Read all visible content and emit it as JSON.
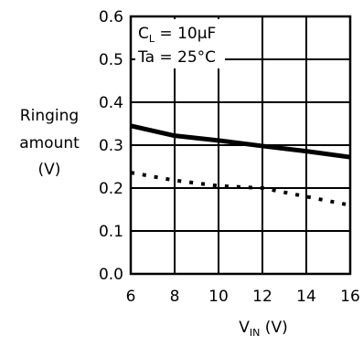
{
  "chart_data": {
    "type": "line",
    "title": "",
    "xlabel": "V",
    "xlabel_sub": "IN",
    "xlabel_unit": " (V)",
    "ylabel_lines": [
      "Ringing",
      "amount",
      "(V)"
    ],
    "xlim": [
      6,
      16
    ],
    "ylim": [
      0.0,
      0.6
    ],
    "x_ticks": [
      "6",
      "8",
      "10",
      "12",
      "14",
      "16"
    ],
    "y_ticks": [
      "0.0",
      "0.1",
      "0.2",
      "0.3",
      "0.4",
      "0.5",
      "0.6"
    ],
    "grid": true,
    "annotations": {
      "cl_main": "C",
      "cl_sub": "L",
      "cl_value": " = 10μF",
      "ta": "Ta = 25°C"
    },
    "series": [
      {
        "style": "solid",
        "x": [
          6,
          8,
          10,
          12,
          14,
          16
        ],
        "y": [
          0.345,
          0.322,
          0.311,
          0.298,
          0.286,
          0.272
        ]
      },
      {
        "style": "dotted",
        "x": [
          6,
          8,
          10,
          12,
          14,
          16
        ],
        "y": [
          0.236,
          0.218,
          0.205,
          0.2,
          0.18,
          0.16
        ]
      }
    ]
  }
}
